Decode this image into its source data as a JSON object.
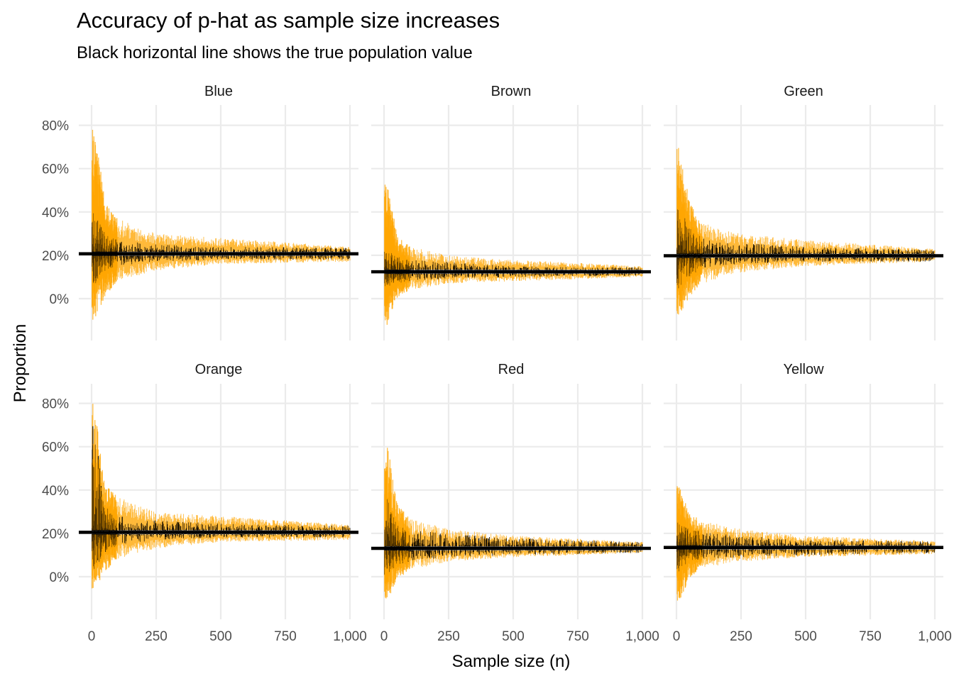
{
  "chart_data": {
    "type": "bar",
    "title": "Accuracy of p-hat as sample size increases",
    "subtitle": "Black horizontal line shows the true population value",
    "xlabel": "Sample size (n)",
    "ylabel": "Proportion",
    "xlim": [
      0,
      1000
    ],
    "ylim": [
      -0.2,
      0.88
    ],
    "x_ticks": [
      0,
      250,
      500,
      750,
      1000
    ],
    "x_tick_labels": [
      "0",
      "250",
      "500",
      "750",
      "1,000"
    ],
    "y_ticks": [
      0,
      0.2,
      0.4,
      0.6,
      0.8
    ],
    "y_tick_labels": [
      "0%",
      "20%",
      "40%",
      "60%",
      "80%"
    ],
    "grid": true,
    "legend": "none",
    "layout": "facet grid 2 rows x 3 columns",
    "colors": {
      "estimate": "#000000",
      "interval": "#ffa500",
      "true_value": "#000000",
      "grid": "#ebebeb"
    },
    "facets": [
      {
        "name": "Blue",
        "true_value": 0.207,
        "envelope": {
          "n": [
            10,
            50,
            100,
            250,
            500,
            1000
          ],
          "estimate_max": [
            0.4,
            0.32,
            0.27,
            0.25,
            0.24,
            0.235
          ],
          "estimate_min": [
            0.06,
            0.12,
            0.15,
            0.17,
            0.18,
            0.18
          ],
          "interval_upper_max": [
            0.8,
            0.47,
            0.37,
            0.3,
            0.28,
            0.24
          ],
          "interval_lower_min": [
            -0.1,
            0.0,
            0.08,
            0.13,
            0.16,
            0.17
          ]
        }
      },
      {
        "name": "Brown",
        "true_value": 0.124,
        "envelope": {
          "n": [
            10,
            50,
            100,
            250,
            500,
            1000
          ],
          "estimate_max": [
            0.22,
            0.2,
            0.18,
            0.17,
            0.15,
            0.145
          ],
          "estimate_min": [
            0.05,
            0.07,
            0.08,
            0.09,
            0.1,
            0.105
          ],
          "interval_upper_max": [
            0.55,
            0.3,
            0.24,
            0.2,
            0.18,
            0.15
          ],
          "interval_lower_min": [
            -0.14,
            0.0,
            0.04,
            0.07,
            0.08,
            0.1
          ]
        }
      },
      {
        "name": "Green",
        "true_value": 0.198,
        "envelope": {
          "n": [
            10,
            50,
            100,
            250,
            500,
            1000
          ],
          "estimate_max": [
            0.43,
            0.33,
            0.28,
            0.26,
            0.24,
            0.225
          ],
          "estimate_min": [
            0.04,
            0.1,
            0.14,
            0.16,
            0.17,
            0.17
          ],
          "interval_upper_max": [
            0.7,
            0.45,
            0.35,
            0.3,
            0.27,
            0.23
          ],
          "interval_lower_min": [
            -0.09,
            0.01,
            0.07,
            0.12,
            0.15,
            0.17
          ]
        }
      },
      {
        "name": "Orange",
        "true_value": 0.205,
        "envelope": {
          "n": [
            10,
            50,
            100,
            250,
            500,
            1000
          ],
          "estimate_max": [
            0.71,
            0.33,
            0.28,
            0.26,
            0.245,
            0.235
          ],
          "estimate_min": [
            0.03,
            0.11,
            0.14,
            0.17,
            0.18,
            0.18
          ],
          "interval_upper_max": [
            0.8,
            0.43,
            0.37,
            0.3,
            0.28,
            0.24
          ],
          "interval_lower_min": [
            -0.06,
            0.02,
            0.08,
            0.13,
            0.16,
            0.17
          ]
        }
      },
      {
        "name": "Red",
        "true_value": 0.131,
        "envelope": {
          "n": [
            10,
            50,
            100,
            250,
            500,
            1000
          ],
          "estimate_max": [
            0.37,
            0.24,
            0.22,
            0.2,
            0.18,
            0.16
          ],
          "estimate_min": [
            0.0,
            0.05,
            0.07,
            0.09,
            0.1,
            0.11
          ],
          "interval_upper_max": [
            0.64,
            0.34,
            0.27,
            0.22,
            0.19,
            0.16
          ],
          "interval_lower_min": [
            -0.12,
            -0.02,
            0.03,
            0.07,
            0.09,
            0.11
          ]
        }
      },
      {
        "name": "Yellow",
        "true_value": 0.135,
        "envelope": {
          "n": [
            10,
            50,
            100,
            250,
            500,
            1000
          ],
          "estimate_max": [
            0.25,
            0.22,
            0.21,
            0.19,
            0.17,
            0.165
          ],
          "estimate_min": [
            0.02,
            0.07,
            0.08,
            0.09,
            0.1,
            0.11
          ],
          "interval_upper_max": [
            0.42,
            0.3,
            0.26,
            0.22,
            0.19,
            0.165
          ],
          "interval_lower_min": [
            -0.12,
            -0.01,
            0.04,
            0.07,
            0.09,
            0.105
          ]
        }
      }
    ]
  }
}
